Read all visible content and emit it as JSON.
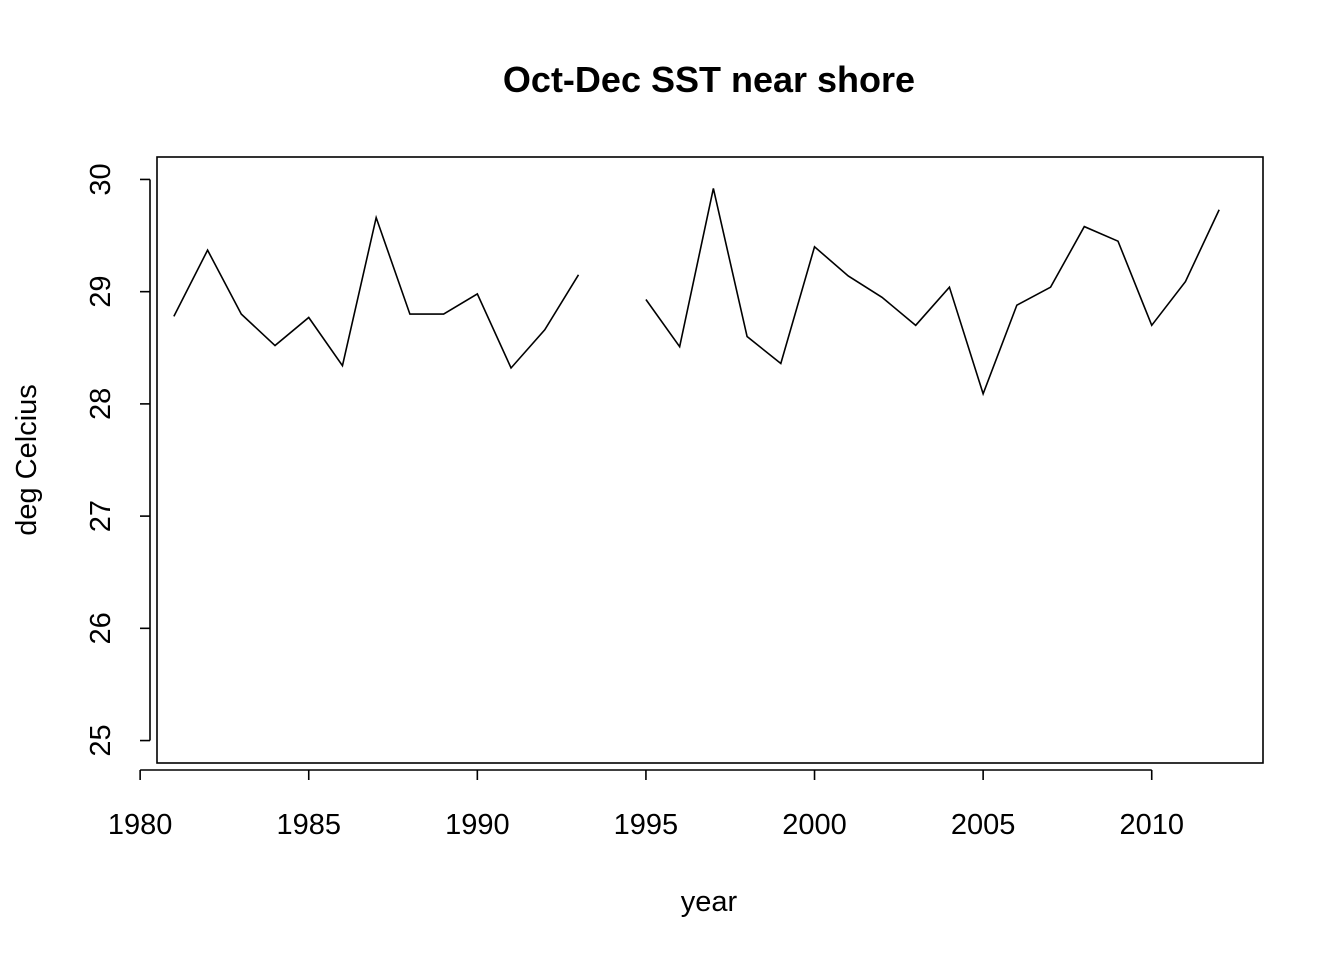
{
  "chart_data": {
    "type": "line",
    "title": "Oct-Dec SST near shore",
    "xlabel": "year",
    "ylabel": "deg Celcius",
    "xlim": [
      1980.5,
      2013.3
    ],
    "ylim": [
      24.8,
      30.2
    ],
    "xticks": [
      1980,
      1985,
      1990,
      1995,
      2000,
      2005,
      2010
    ],
    "yticks": [
      25,
      26,
      27,
      28,
      29,
      30
    ],
    "grid": false,
    "legend": "none",
    "series": [
      {
        "x": [
          1981,
          1982,
          1983,
          1984,
          1985,
          1986,
          1987,
          1988,
          1989,
          1990,
          1991,
          1992,
          1993,
          1994,
          1995,
          1996,
          1997,
          1998,
          1999,
          2000,
          2001,
          2002,
          2003,
          2004,
          2005,
          2006,
          2007,
          2008,
          2009,
          2010,
          2011,
          2012
        ],
        "values": [
          28.78,
          29.37,
          28.8,
          28.52,
          28.77,
          28.34,
          29.66,
          28.8,
          28.8,
          28.98,
          28.32,
          28.66,
          29.15,
          null,
          28.93,
          28.51,
          29.92,
          28.6,
          28.36,
          29.4,
          29.14,
          28.95,
          28.7,
          29.04,
          28.09,
          28.88,
          29.04,
          29.58,
          29.45,
          28.7,
          29.09,
          29.73
        ]
      }
    ]
  }
}
